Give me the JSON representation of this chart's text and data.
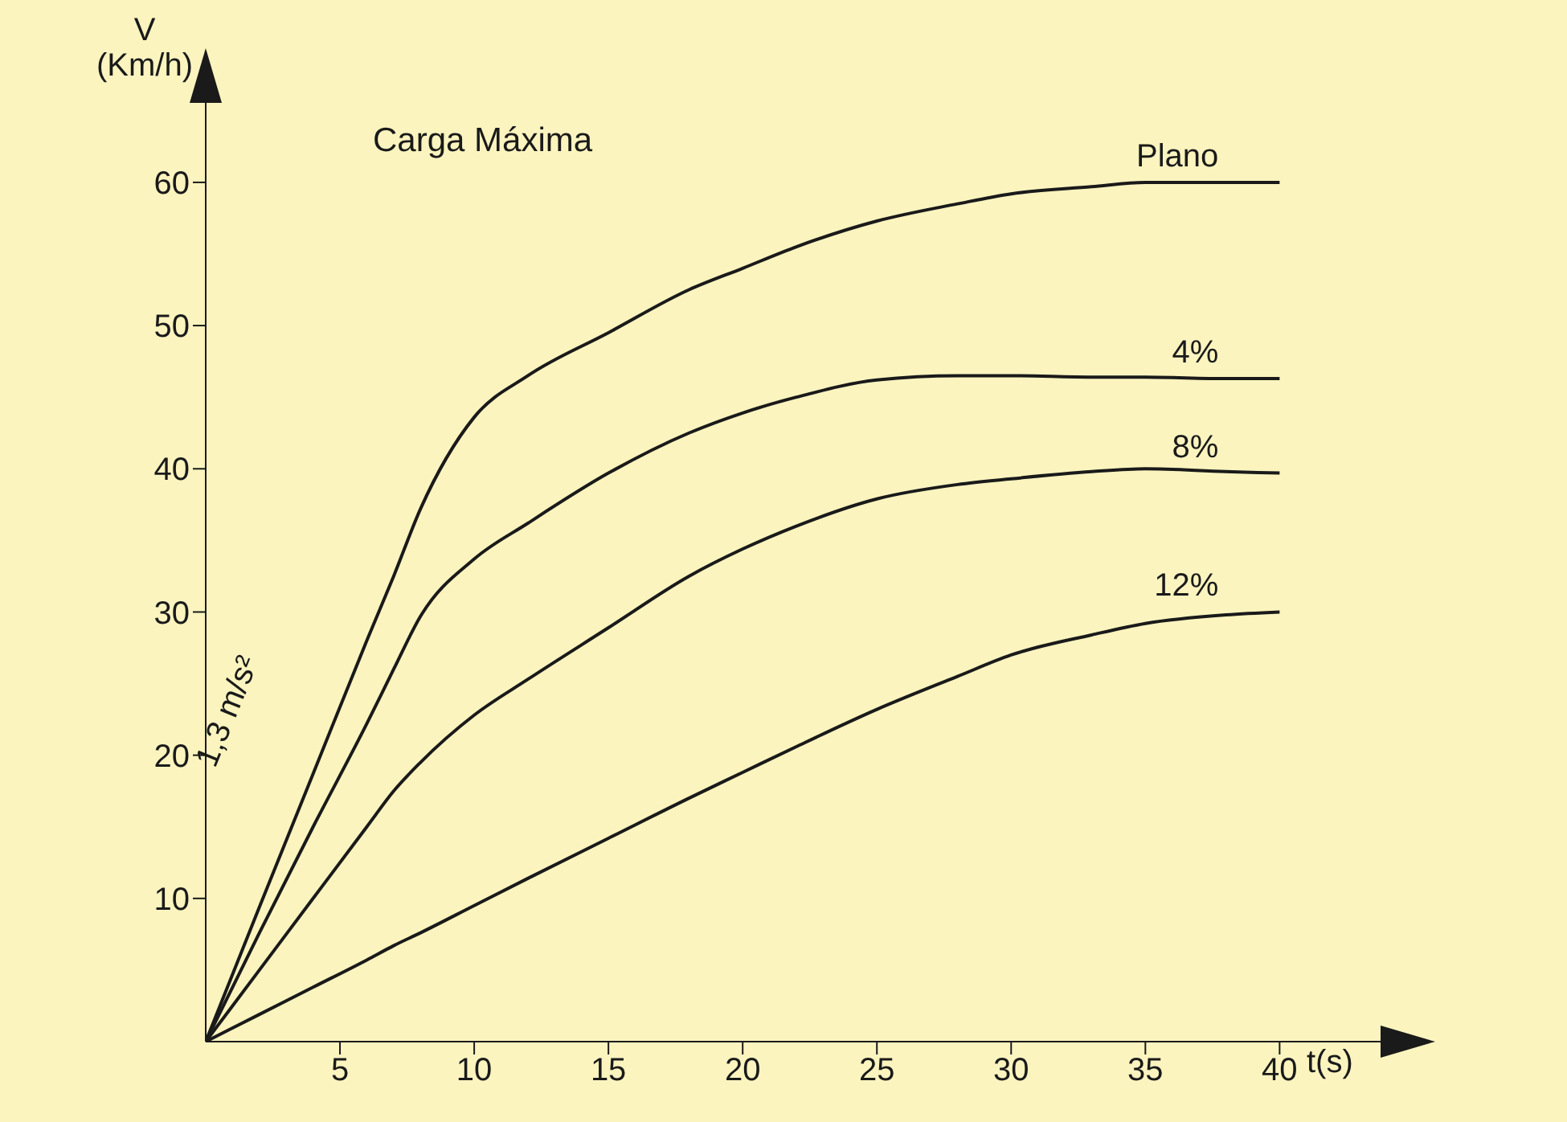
{
  "chart_data": {
    "type": "line",
    "title": "Carga Máxima",
    "xlabel": "t(s)",
    "ylabel": "V (Km/h)",
    "annotations": [
      "1,3 m/s²"
    ],
    "x": [
      0,
      2,
      4,
      6,
      7,
      8,
      10,
      12,
      15,
      18,
      20,
      22,
      25,
      28,
      30,
      33,
      35,
      38,
      40
    ],
    "series": [
      {
        "name": "Plano",
        "color": "#1a1a1a",
        "values": [
          0,
          9.4,
          18.7,
          28,
          32.5,
          37.2,
          43.6,
          46.5,
          49.5,
          52.5,
          54,
          55.5,
          57.3,
          58.5,
          59.2,
          59.7,
          60,
          60,
          60
        ]
      },
      {
        "name": "4%",
        "color": "#1a1a1a",
        "values": [
          0,
          7.6,
          15,
          22.2,
          26,
          29.7,
          33.7,
          36.2,
          39.7,
          42.5,
          43.9,
          45,
          46.2,
          46.5,
          46.5,
          46.4,
          46.4,
          46.3,
          46.3
        ]
      },
      {
        "name": "8%",
        "color": "#1a1a1a",
        "values": [
          0,
          5,
          10,
          15,
          17.5,
          19.5,
          22.8,
          25.3,
          28.9,
          32.5,
          34.4,
          36,
          37.9,
          38.9,
          39.3,
          39.8,
          40,
          39.8,
          39.7
        ]
      },
      {
        "name": "12%",
        "color": "#1a1a1a",
        "values": [
          0,
          1.9,
          3.8,
          5.7,
          6.7,
          7.6,
          9.5,
          11.4,
          14.2,
          17,
          18.8,
          20.6,
          23.2,
          25.5,
          27,
          28.4,
          29.2,
          29.8,
          30
        ]
      }
    ],
    "xlim": [
      0,
      44
    ],
    "ylim": [
      0,
      66
    ],
    "xticks": [
      5,
      10,
      15,
      20,
      25,
      30,
      35,
      40
    ],
    "yticks": [
      10,
      20,
      30,
      40,
      50,
      60
    ],
    "grid": false,
    "legend": false,
    "marker": "none",
    "line_style": "solid"
  }
}
